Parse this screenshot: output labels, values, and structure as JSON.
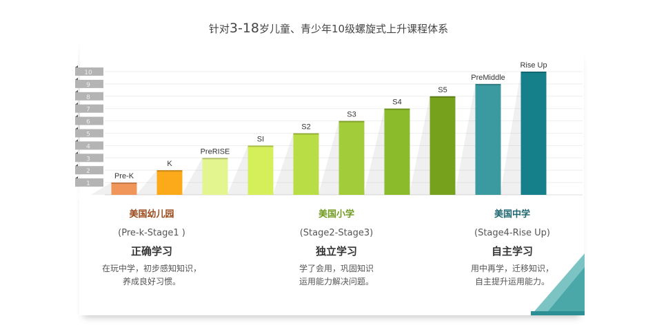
{
  "title": {
    "prefix": "针对",
    "highlight": "3-18",
    "suffix": "岁儿童、青少年10级螺旋式上升课程体系"
  },
  "chart_data": {
    "type": "bar",
    "title": "针对3-18岁儿童、青少年10级螺旋式上升课程体系",
    "categories": [
      "Pre-K",
      "K",
      "PreRISE",
      "SI",
      "S2",
      "S3",
      "S4",
      "S5",
      "PreMiddle",
      "Rise Up"
    ],
    "values": [
      1,
      2,
      3,
      4,
      5,
      6,
      7,
      8,
      9,
      10
    ],
    "colors": [
      "#f0965a",
      "#fcaa1a",
      "#e3f58e",
      "#d4ef5a",
      "#b9dd45",
      "#a3cc3a",
      "#8bbb2a",
      "#76a11c",
      "#3a9aa0",
      "#157f8a"
    ],
    "yticks": [
      "1",
      "2",
      "3",
      "4",
      "5",
      "6",
      "7",
      "8",
      "9",
      "10"
    ],
    "ylim": [
      0,
      10
    ],
    "grid": true
  },
  "groups": [
    {
      "heading": "美国幼儿园",
      "stages": "(Pre-k-Stage1 )",
      "motto": "正确学习",
      "desc1": "在玩中学，初步感知知识，",
      "desc2": "养成良好习惯。",
      "color": "#9a4a1c"
    },
    {
      "heading": "美国小学",
      "stages": "(Stage2-Stage3)",
      "motto": "独立学习",
      "desc1": "学了会用，巩固知识",
      "desc2": "运用能力解决问题。",
      "color": "#6f9a1e"
    },
    {
      "heading": "美国中学",
      "stages": "(Stage4-Rise Up)",
      "motto": "自主学习",
      "desc1": "用中再学，迁移知识，",
      "desc2": "自主提升运用能力。",
      "color": "#1e6670"
    }
  ]
}
